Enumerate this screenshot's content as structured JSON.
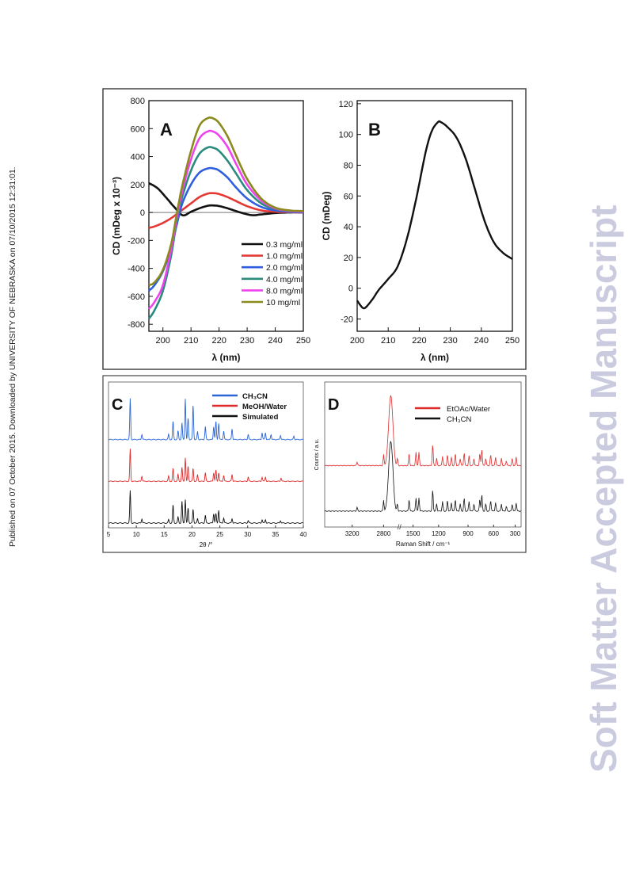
{
  "side_note": "Published on 07 October 2015. Downloaded by UNIVERSITY OF NEBRASKA on 07/10/2015 12:31:01.",
  "watermark": "Soft Matter Accepted Manuscript",
  "colors": {
    "watermark": "#cbcbe0",
    "c03": "#111111",
    "c10": "#e53935",
    "c20": "#2f5fe0",
    "c40": "#2a8a7e",
    "c80": "#ee44ee",
    "c100": "#8a8a1e",
    "ch3cn_xrd": "#2a66d6",
    "red": "#dd2a2a",
    "black": "#111111"
  },
  "chart_data": [
    {
      "panel": "A",
      "type": "line",
      "xlabel": "λ (nm)",
      "ylabel": "CD (mDeg x 10⁻³)",
      "xlim": [
        195,
        250
      ],
      "ylim": [
        -850,
        800
      ],
      "xticks": [
        "200",
        "210",
        "220",
        "230",
        "240",
        "250"
      ],
      "yticks": [
        "800",
        "600",
        "400",
        "200",
        "0",
        "-200",
        "-400",
        "-600",
        "-800"
      ],
      "legend_position": "lower-right",
      "series": [
        {
          "name": "0.3 mg/ml",
          "color_key": "c03",
          "x": [
            195,
            198,
            201,
            204,
            207,
            210,
            213,
            216,
            218,
            220,
            223,
            226,
            229,
            232,
            235,
            240,
            245,
            250
          ],
          "y": [
            210,
            175,
            110,
            40,
            -20,
            5,
            30,
            48,
            50,
            46,
            30,
            10,
            -8,
            -20,
            -14,
            -4,
            0,
            0
          ]
        },
        {
          "name": "1.0 mg/ml",
          "color_key": "c10",
          "x": [
            195,
            197,
            200,
            203,
            205,
            207,
            210,
            213,
            216,
            218,
            220,
            223,
            226,
            230,
            235,
            240,
            245,
            250
          ],
          "y": [
            -110,
            -100,
            -75,
            -40,
            -10,
            20,
            65,
            110,
            135,
            138,
            132,
            110,
            82,
            45,
            15,
            5,
            2,
            0
          ]
        },
        {
          "name": "2.0 mg/ml",
          "color_key": "c20",
          "x": [
            195,
            197,
            200,
            203,
            205,
            207,
            210,
            213,
            216,
            218,
            220,
            223,
            226,
            230,
            235,
            240,
            245,
            250
          ],
          "y": [
            -560,
            -520,
            -420,
            -250,
            -80,
            70,
            200,
            285,
            315,
            315,
            300,
            250,
            180,
            100,
            40,
            15,
            5,
            0
          ]
        },
        {
          "name": "4.0 mg/ml",
          "color_key": "c40",
          "x": [
            195,
            197,
            200,
            203,
            205,
            207,
            210,
            213,
            216,
            218,
            220,
            223,
            226,
            230,
            235,
            240,
            245,
            250
          ],
          "y": [
            -760,
            -700,
            -560,
            -300,
            -50,
            120,
            300,
            420,
            465,
            462,
            440,
            370,
            280,
            160,
            65,
            25,
            10,
            5
          ]
        },
        {
          "name": "8.0 mg/ml",
          "color_key": "c80",
          "x": [
            195,
            197,
            200,
            203,
            205,
            207,
            210,
            213,
            216,
            218,
            220,
            223,
            226,
            230,
            235,
            240,
            245,
            250
          ],
          "y": [
            -690,
            -640,
            -520,
            -260,
            -30,
            160,
            380,
            530,
            580,
            578,
            550,
            470,
            350,
            200,
            85,
            30,
            12,
            5
          ]
        },
        {
          "name": "10  mg/ml",
          "color_key": "c100",
          "x": [
            195,
            197,
            200,
            203,
            205,
            207,
            210,
            213,
            216,
            218,
            220,
            223,
            226,
            230,
            235,
            240,
            245,
            250
          ],
          "y": [
            -520,
            -500,
            -410,
            -220,
            0,
            200,
            440,
            620,
            675,
            672,
            640,
            545,
            410,
            240,
            100,
            35,
            15,
            10
          ]
        }
      ]
    },
    {
      "panel": "B",
      "type": "line",
      "xlabel": "λ (nm)",
      "ylabel": "CD (mDeg)",
      "xlim": [
        200,
        250
      ],
      "ylim": [
        -28,
        122
      ],
      "xticks": [
        "200",
        "210",
        "220",
        "230",
        "240",
        "250"
      ],
      "yticks": [
        "120",
        "100",
        "80",
        "60",
        "40",
        "20",
        "0",
        "-20"
      ],
      "series": [
        {
          "color_key": "black",
          "x": [
            200,
            201,
            202,
            203,
            205,
            207,
            210,
            213,
            216,
            219,
            222,
            224,
            226,
            227,
            229,
            232,
            235,
            238,
            241,
            244,
            247,
            250
          ],
          "y": [
            -8,
            -11,
            -13,
            -12,
            -7,
            -1,
            6,
            14,
            32,
            58,
            88,
            102,
            108,
            108,
            105,
            98,
            84,
            64,
            44,
            30,
            23,
            19
          ]
        }
      ]
    },
    {
      "panel": "C",
      "type": "line",
      "xlabel": "2θ /°",
      "xlim": [
        5,
        40
      ],
      "xticks": [
        "5",
        "10",
        "15",
        "20",
        "25",
        "30",
        "35",
        "40"
      ],
      "legend_position": "top-right",
      "series": [
        {
          "name": "CH₃CN",
          "color_key": "ch3cn_xrd",
          "baseline": 0.62,
          "peaks": [
            [
              8.9,
              0.95
            ],
            [
              11,
              0.12
            ],
            [
              15.8,
              0.12
            ],
            [
              16.6,
              0.42
            ],
            [
              17.5,
              0.2
            ],
            [
              18.2,
              0.38
            ],
            [
              18.8,
              0.95
            ],
            [
              19.3,
              0.5
            ],
            [
              20.2,
              0.8
            ],
            [
              21,
              0.18
            ],
            [
              22.4,
              0.3
            ],
            [
              23.9,
              0.3
            ],
            [
              24.3,
              0.42
            ],
            [
              24.8,
              0.38
            ],
            [
              25.7,
              0.2
            ],
            [
              27.2,
              0.25
            ],
            [
              30.1,
              0.12
            ],
            [
              32.6,
              0.16
            ],
            [
              33.2,
              0.16
            ],
            [
              34.2,
              0.12
            ],
            [
              35.9,
              0.1
            ],
            [
              38.3,
              0.08
            ]
          ]
        },
        {
          "name": "MeOH/Water",
          "color_key": "red",
          "baseline": 0.31,
          "peaks": [
            [
              8.9,
              0.75
            ],
            [
              11,
              0.12
            ],
            [
              15.8,
              0.12
            ],
            [
              16.6,
              0.3
            ],
            [
              17.5,
              0.16
            ],
            [
              18.2,
              0.32
            ],
            [
              18.8,
              0.55
            ],
            [
              19.3,
              0.35
            ],
            [
              20.2,
              0.3
            ],
            [
              21,
              0.15
            ],
            [
              22.4,
              0.2
            ],
            [
              23.9,
              0.2
            ],
            [
              24.3,
              0.26
            ],
            [
              24.8,
              0.2
            ],
            [
              25.7,
              0.14
            ],
            [
              27.2,
              0.16
            ],
            [
              30.1,
              0.1
            ],
            [
              32.6,
              0.1
            ],
            [
              33.2,
              0.1
            ],
            [
              36,
              0.08
            ]
          ]
        },
        {
          "name": "Simulated",
          "color_key": "black",
          "baseline": 0.0,
          "peaks": [
            [
              8.9,
              0.75
            ],
            [
              11,
              0.1
            ],
            [
              15.8,
              0.08
            ],
            [
              16.6,
              0.42
            ],
            [
              17.5,
              0.14
            ],
            [
              18.2,
              0.5
            ],
            [
              18.8,
              0.55
            ],
            [
              19.3,
              0.35
            ],
            [
              20.2,
              0.32
            ],
            [
              21,
              0.1
            ],
            [
              22.4,
              0.18
            ],
            [
              23.9,
              0.22
            ],
            [
              24.3,
              0.22
            ],
            [
              24.8,
              0.3
            ],
            [
              25.7,
              0.12
            ],
            [
              27.2,
              0.1
            ],
            [
              30.1,
              0.06
            ],
            [
              32.6,
              0.08
            ],
            [
              33.2,
              0.08
            ],
            [
              35.9,
              0.06
            ]
          ]
        }
      ]
    },
    {
      "panel": "D",
      "type": "line",
      "xlabel": "Raman Shift / cm⁻¹",
      "ylabel": "Counts / a.u.",
      "xticks": [
        "3200",
        "2800",
        "1500",
        "1200",
        "900",
        "600",
        "300"
      ],
      "axis_break": "between 2800 and 1500",
      "legend_position": "top-right",
      "series": [
        {
          "name": "EtOAc/Water",
          "color_key": "red",
          "baseline": 0.42
        },
        {
          "name": "CH₃CN",
          "color_key": "black",
          "baseline": 0.08
        }
      ],
      "peaks_rel": [
        [
          0.165,
          0.06
        ],
        [
          0.3,
          0.18
        ],
        [
          0.325,
          0.3
        ],
        [
          0.335,
          0.8
        ],
        [
          0.345,
          0.5
        ],
        [
          0.37,
          0.12
        ],
        [
          0.43,
          0.2
        ],
        [
          0.465,
          0.22
        ],
        [
          0.48,
          0.22
        ],
        [
          0.55,
          0.36
        ],
        [
          0.57,
          0.12
        ],
        [
          0.6,
          0.16
        ],
        [
          0.625,
          0.18
        ],
        [
          0.645,
          0.14
        ],
        [
          0.665,
          0.2
        ],
        [
          0.69,
          0.12
        ],
        [
          0.71,
          0.22
        ],
        [
          0.735,
          0.16
        ],
        [
          0.76,
          0.12
        ],
        [
          0.79,
          0.2
        ],
        [
          0.8,
          0.28
        ],
        [
          0.82,
          0.12
        ],
        [
          0.845,
          0.18
        ],
        [
          0.87,
          0.14
        ],
        [
          0.9,
          0.12
        ],
        [
          0.925,
          0.08
        ],
        [
          0.955,
          0.12
        ],
        [
          0.975,
          0.14
        ]
      ]
    }
  ],
  "panel_labels": {
    "A": "A",
    "B": "B",
    "C": "C",
    "D": "D"
  }
}
